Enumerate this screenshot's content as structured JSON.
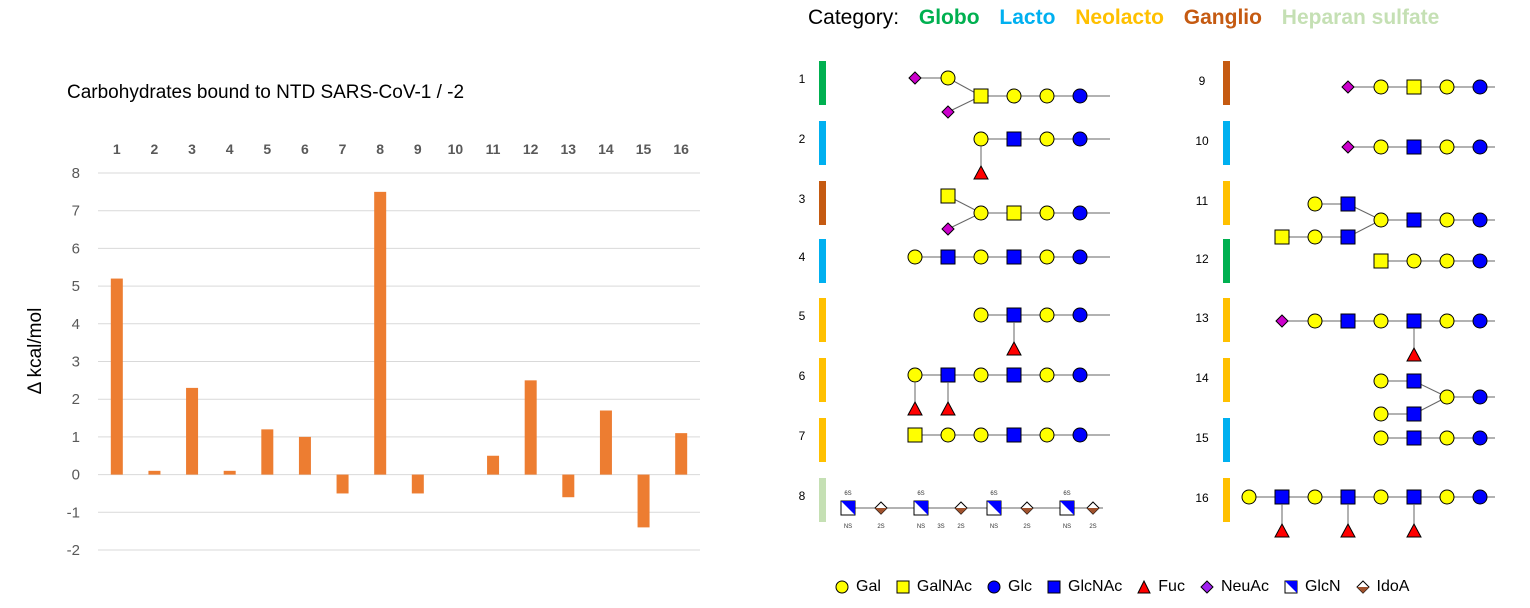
{
  "chart_data": {
    "type": "bar",
    "title": "Carbohydrates bound to NTD SARS-CoV-1 / -2",
    "ylabel": "Δ kcal/mol",
    "xlabel": "",
    "categories": [
      "1",
      "2",
      "3",
      "4",
      "5",
      "6",
      "7",
      "8",
      "9",
      "10",
      "11",
      "12",
      "13",
      "14",
      "15",
      "16"
    ],
    "values": [
      5.2,
      0.1,
      2.3,
      0.1,
      1.2,
      1.0,
      -0.5,
      7.5,
      -0.5,
      0,
      0.5,
      2.5,
      -0.6,
      1.7,
      -1.4,
      1.1
    ],
    "ylim": [
      -2,
      8
    ],
    "yticks": [
      "8",
      "7",
      "6",
      "5",
      "4",
      "3",
      "2",
      "1",
      "0",
      "-1",
      "-2"
    ],
    "x_axis_position": "top",
    "grid": true,
    "bar_color": "#ED7D31"
  },
  "legend": {
    "category_label": "Category:",
    "categories": [
      {
        "name": "Globo",
        "color": "#00B050"
      },
      {
        "name": "Lacto",
        "color": "#00B0F0"
      },
      {
        "name": "Neolacto",
        "color": "#FFC000"
      },
      {
        "name": "Ganglio",
        "color": "#C55A11"
      },
      {
        "name": "Heparan sulfate",
        "color": "#C5E0B4"
      }
    ]
  },
  "glycans": {
    "left_numbers": [
      "1",
      "2",
      "3",
      "4",
      "5",
      "6",
      "7",
      "8"
    ],
    "right_numbers": [
      "9",
      "10",
      "11",
      "12",
      "13",
      "14",
      "15",
      "16"
    ],
    "left_categories": [
      "Globo",
      "Lacto",
      "Ganglio",
      "Lacto",
      "Neolacto",
      "Neolacto",
      "Neolacto",
      "Heparan sulfate"
    ],
    "right_categories": [
      "Ganglio",
      "Lacto",
      "Neolacto",
      "Globo",
      "Neolacto",
      "Neolacto",
      "Lacto",
      "Neolacto"
    ],
    "hs_labels": [
      "6S",
      "NS",
      "2S",
      "3S"
    ]
  },
  "symbols": [
    {
      "name": "Gal",
      "shape": "circle",
      "color": "#FFFF00"
    },
    {
      "name": "GalNAc",
      "shape": "square",
      "color": "#FFFF00"
    },
    {
      "name": "Glc",
      "shape": "circle",
      "color": "#0000FF"
    },
    {
      "name": "GlcNAc",
      "shape": "square",
      "color": "#0000FF"
    },
    {
      "name": "Fuc",
      "shape": "triangle",
      "color": "#FF0000"
    },
    {
      "name": "NeuAc",
      "shape": "diamond",
      "color": "#A020F0"
    },
    {
      "name": "GlcN",
      "shape": "half-square",
      "color": "#0000FF"
    },
    {
      "name": "IdoA",
      "shape": "half-diamond",
      "color": "#A0522D"
    }
  ]
}
